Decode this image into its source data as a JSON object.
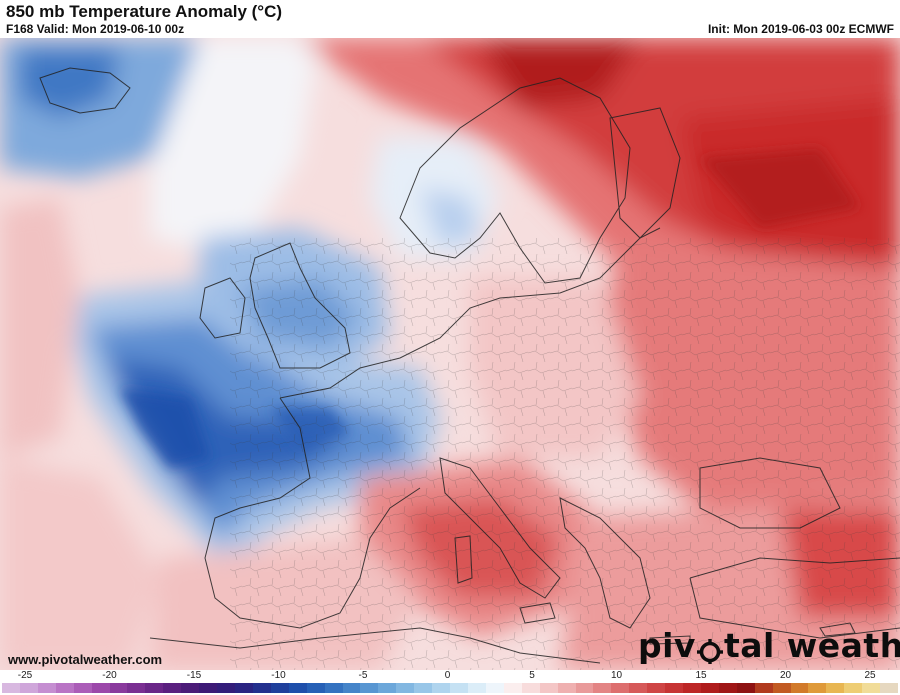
{
  "header": {
    "title": "850 mb Temperature Anomaly (°C)",
    "valid": "F168 Valid: Mon 2019-06-10 00z",
    "init": "Init: Mon 2019-06-03 00z ECMWF"
  },
  "footer": {
    "website": "www.pivotalweather.com",
    "logo_left": "piv",
    "logo_right": "tal weather"
  },
  "colorbar": {
    "tick_labels": [
      "-25",
      "-20",
      "-15",
      "-10",
      "-5",
      "0",
      "5",
      "10",
      "15",
      "20",
      "25"
    ],
    "min": -25,
    "max": 25,
    "colors": [
      "#d8b8e0",
      "#cfa6da",
      "#c58ed1",
      "#b974c5",
      "#ab5db8",
      "#9c48aa",
      "#8a3a9d",
      "#7a2f92",
      "#6a2688",
      "#5a1f7f",
      "#4b1b78",
      "#3d1a76",
      "#331d7a",
      "#2a2482",
      "#23308e",
      "#1f3f9c",
      "#1e4fab",
      "#2660b6",
      "#3472c0",
      "#4584c9",
      "#5896d2",
      "#6ca7da",
      "#82b7e1",
      "#98c6e8",
      "#afd4ee",
      "#c5e1f3",
      "#dbedf8",
      "#eef5fb",
      "#fbeeee",
      "#f8dcdc",
      "#f4c6c6",
      "#efb0b0",
      "#e99a9a",
      "#e38484",
      "#dd6e6e",
      "#d65959",
      "#cf4545",
      "#c73434",
      "#bd2626",
      "#b01c1c",
      "#a01616",
      "#8e1212",
      "#b13a1e",
      "#c25a22",
      "#d27a2a",
      "#df9a3a",
      "#e8b652",
      "#eecd74",
      "#f1dc98",
      "#e6d8c0"
    ]
  },
  "map": {
    "region": "Europe",
    "anomaly_pattern": [
      {
        "area": "Atlantic west of Iberia",
        "sign": "negative"
      },
      {
        "area": "France and Iberia",
        "sign": "negative"
      },
      {
        "area": "British Isles",
        "sign": "negative"
      },
      {
        "area": "North Atlantic south of Iceland",
        "sign": "positive"
      },
      {
        "area": "Scandinavia and Russia",
        "sign": "positive"
      },
      {
        "area": "Central and Eastern Europe",
        "sign": "positive"
      },
      {
        "area": "Italy and Mediterranean",
        "sign": "positive"
      },
      {
        "area": "Turkey",
        "sign": "positive"
      }
    ]
  }
}
